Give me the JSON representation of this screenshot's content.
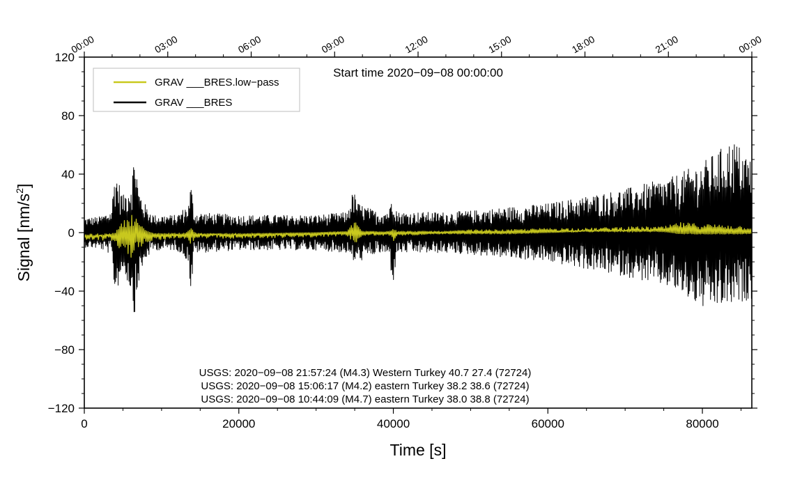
{
  "chart_data": {
    "type": "line",
    "title": "",
    "xlabel": "Time [s]",
    "ylabel": "Signal [nm/s",
    "ylabel_sup": "2",
    "ylabel_suffix": "]",
    "xlim": [
      0,
      86400
    ],
    "ylim": [
      -120,
      120
    ],
    "x_ticks": [
      0,
      20000,
      40000,
      60000,
      80000
    ],
    "x_tick_labels": [
      "0",
      "20000",
      "40000",
      "60000",
      "80000"
    ],
    "y_ticks": [
      -120,
      -80,
      -40,
      0,
      40,
      80,
      120
    ],
    "y_tick_labels": [
      "−120",
      "−80",
      "−40",
      "0",
      "40",
      "80",
      "120"
    ],
    "top_axis": {
      "ticks_seconds": [
        0,
        10800,
        21600,
        32400,
        43200,
        54000,
        64800,
        75600,
        86400
      ],
      "labels": [
        "00:00",
        "03:00",
        "06:00",
        "09:00",
        "12:00",
        "15:00",
        "18:00",
        "21:00",
        "00:00"
      ]
    },
    "start_time_label": "Start time 2020−09−08 00:00:00",
    "legend": {
      "placement": "top-left",
      "entries": [
        {
          "name": "GRAV ___BRES.low−pass",
          "color": "#c8c81e"
        },
        {
          "name": "GRAV ___BRES",
          "color": "#000000"
        }
      ]
    },
    "series": [
      {
        "name": "GRAV ___BRES",
        "color": "#000000",
        "x": [
          0,
          2000,
          3500,
          4000,
          4200,
          5000,
          6000,
          6600,
          7000,
          8000,
          9000,
          12000,
          13500,
          13800,
          14200,
          20000,
          30000,
          34000,
          34800,
          35500,
          38000,
          39500,
          39900,
          40500,
          47000,
          50000,
          60000,
          70000,
          76000,
          80000,
          84000,
          86400
        ],
        "upper": [
          10,
          11,
          15,
          45,
          40,
          25,
          35,
          58,
          30,
          18,
          12,
          12,
          20,
          35,
          14,
          12,
          12,
          14,
          29,
          20,
          14,
          16,
          31,
          14,
          14,
          15,
          20,
          30,
          38,
          48,
          64,
          50
        ],
        "lower": [
          -10,
          -11,
          -15,
          -44,
          -40,
          -25,
          -40,
          -60,
          -35,
          -18,
          -12,
          -12,
          -20,
          -45,
          -14,
          -12,
          -12,
          -14,
          -20,
          -20,
          -14,
          -16,
          -38,
          -14,
          -14,
          -15,
          -20,
          -30,
          -38,
          -52,
          -50,
          -45
        ]
      },
      {
        "name": "GRAV ___BRES.low−pass",
        "color": "#c8c81e",
        "x": [
          0,
          2000,
          4000,
          4500,
          5500,
          6200,
          7000,
          7800,
          9000,
          13000,
          13800,
          14500,
          20000,
          30000,
          34000,
          35000,
          36000,
          39500,
          40000,
          40500,
          47000,
          50000,
          55000,
          60000,
          65000,
          70000,
          75000,
          77000,
          80000,
          84000,
          86400
        ],
        "upper": [
          -2,
          -2,
          -1,
          5,
          10,
          13,
          8,
          2,
          -1,
          -1,
          3,
          -1,
          -1,
          0,
          1,
          8,
          1,
          1,
          4,
          1,
          1,
          2,
          2,
          3,
          3,
          4,
          4,
          7,
          6,
          5,
          4
        ],
        "lower": [
          -5,
          -5,
          -6,
          -12,
          -16,
          -18,
          -14,
          -7,
          -5,
          -4,
          -8,
          -4,
          -4,
          -3,
          -2,
          -8,
          -2,
          -2,
          -6,
          -2,
          -1,
          -1,
          -1,
          0,
          1,
          1,
          1,
          -1,
          -1,
          -1,
          -1
        ]
      }
    ],
    "annotations": [
      "USGS: 2020−09−08 21:57:24 (M4.3) Western Turkey 40.7 27.4 (72724)",
      "USGS: 2020−09−08 15:06:17 (M4.2) eastern Turkey 38.2 38.6 (72724)",
      "USGS: 2020−09−08 10:44:09 (M4.7) eastern Turkey 38.0 38.8 (72724)"
    ]
  }
}
